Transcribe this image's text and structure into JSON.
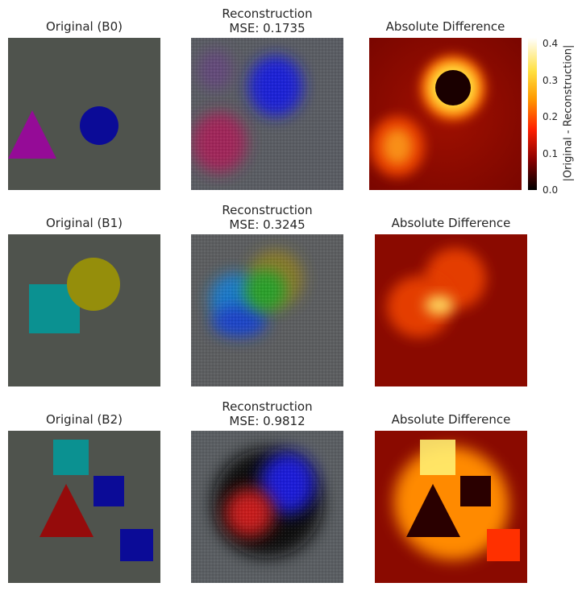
{
  "chart_data": [
    {
      "type": "image",
      "title": "Original (B0)",
      "background": "#4f534d",
      "shapes": [
        {
          "kind": "circle",
          "color": "#0b0b97"
        },
        {
          "kind": "triangle",
          "color": "#950b97"
        }
      ]
    },
    {
      "type": "image",
      "title": "Reconstruction\nMSE: 0.1735",
      "mse": 0.1735,
      "background": "#5a5d63",
      "blobs": [
        {
          "color": "#1a22d6"
        },
        {
          "color": "#a0285a"
        },
        {
          "color": "#6a3c8a"
        }
      ]
    },
    {
      "type": "heatmap",
      "title": "Absolute Difference",
      "colormap": "hot",
      "colorbar": {
        "label": "|Original - Reconstruction|",
        "ticks": [
          "0.0",
          "0.1",
          "0.2",
          "0.3",
          "0.4"
        ],
        "range": [
          0,
          0.4
        ]
      },
      "features": [
        {
          "kind": "ring",
          "color": "#ff6a00"
        },
        {
          "kind": "hole",
          "color": "#1a0000"
        },
        {
          "kind": "blob",
          "color": "#e84000"
        }
      ]
    },
    {
      "type": "image",
      "title": "Original (B1)",
      "background": "#4f534d",
      "shapes": [
        {
          "kind": "square",
          "color": "#0b9191"
        },
        {
          "kind": "circle",
          "color": "#958e0b"
        }
      ]
    },
    {
      "type": "image",
      "title": "Reconstruction\nMSE: 0.3245",
      "mse": 0.3245,
      "background": "#5c5e60",
      "blobs": [
        {
          "color": "#1e7ac8"
        },
        {
          "color": "#1e45c8"
        },
        {
          "color": "#2aa02a"
        },
        {
          "color": "#8a7a2a"
        }
      ]
    },
    {
      "type": "heatmap",
      "title": "Absolute Difference",
      "colormap": "hot",
      "features": [
        {
          "kind": "blob",
          "color": "#e43c00"
        },
        {
          "kind": "hot",
          "color": "#ffd860"
        }
      ]
    },
    {
      "type": "image",
      "title": "Original (B2)",
      "background": "#4f534d",
      "shapes": [
        {
          "kind": "square",
          "color": "#0b9191"
        },
        {
          "kind": "square",
          "color": "#0b0b97"
        },
        {
          "kind": "triangle",
          "color": "#950b0b"
        },
        {
          "kind": "square",
          "color": "#0b0b97"
        }
      ]
    },
    {
      "type": "image",
      "title": "Reconstruction\nMSE: 0.9812",
      "mse": 0.9812,
      "background": "#5a5e62",
      "blobs": [
        {
          "color": "#08080e"
        },
        {
          "color": "#1a1ad8"
        },
        {
          "color": "#c81e1e"
        }
      ]
    },
    {
      "type": "heatmap",
      "title": "Absolute Difference",
      "colormap": "hot",
      "features": [
        {
          "kind": "field",
          "color": "#ff8a00"
        },
        {
          "kind": "square",
          "color": "#ffee70"
        },
        {
          "kind": "triangle",
          "color": "#2a0000"
        },
        {
          "kind": "square",
          "color": "#2a0000"
        },
        {
          "kind": "square",
          "color": "#ff3000"
        }
      ]
    }
  ]
}
